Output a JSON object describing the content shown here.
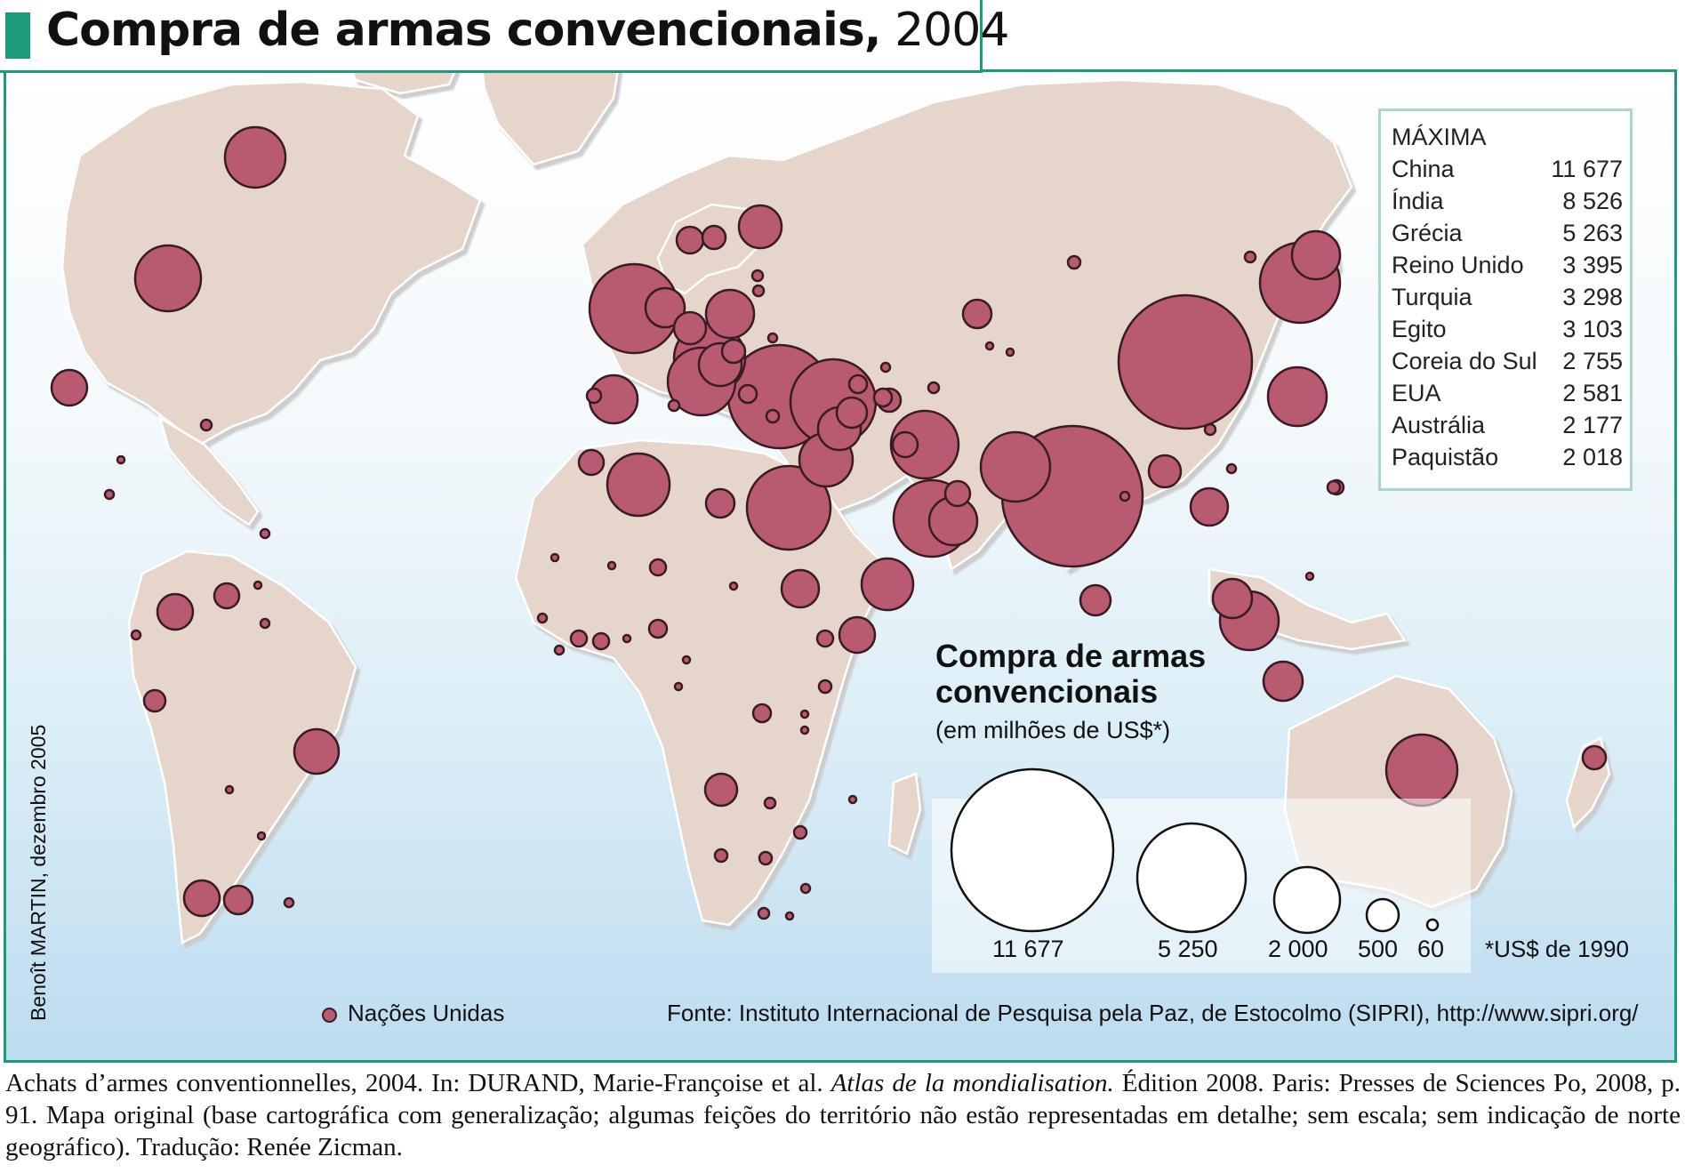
{
  "title": {
    "bold": "Compra de armas convencionais,",
    "year": "2004"
  },
  "ranking": {
    "header": "MÁXIMA",
    "rows": [
      {
        "country": "China",
        "value": "11 677"
      },
      {
        "country": "Índia",
        "value": "8 526"
      },
      {
        "country": "Grécia",
        "value": "5 263"
      },
      {
        "country": "Reino Unido",
        "value": "3 395"
      },
      {
        "country": "Turquia",
        "value": "3 298"
      },
      {
        "country": "Egito",
        "value": "3 103"
      },
      {
        "country": "Coreia do Sul",
        "value": "2 755"
      },
      {
        "country": "EUA",
        "value": "2 581"
      },
      {
        "country": "Austrália",
        "value": "2 177"
      },
      {
        "country": "Paquistão",
        "value": "2 018"
      }
    ]
  },
  "legend": {
    "title": "Compra de armas convencionais",
    "subtitle": "(em milhões de US$*)",
    "sizes": [
      "11 677",
      "5 250",
      "2 000",
      "500",
      "60"
    ],
    "footnote": "*US$ de 1990",
    "un_label": "Nações Unidas"
  },
  "source": "Fonte: Instituto Internacional de Pesquisa pela Paz, de Estocolmo (SIPRI), http://www.sipri.org/",
  "author": "Benoît MARTIN, dezembro 2005",
  "citation": {
    "part1": "Achats d’armes conventionnelles, 2004. In: DURAND, Marie-Françoise et al. ",
    "italic": "Atlas de la mondialisation.",
    "part2": " Édition 2008. Paris: Presses de Sciences Po, 2008, p. 91. Mapa original (base cartográfica com generalização; algumas feições do território não estão representadas em detalhe; sem escala; sem indicação de norte geográfico). Tradução: Renée Zicman."
  },
  "colors": {
    "frame": "#1c9a7c",
    "land": "#e6d5cb",
    "bubble": "#b85a70",
    "bubble_stroke": "#3a1b23",
    "ocean_bottom": "#bcdcef"
  }
}
